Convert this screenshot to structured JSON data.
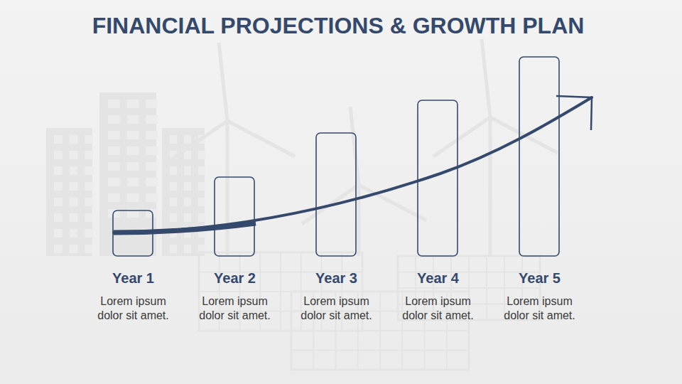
{
  "chart_data": {
    "type": "bar",
    "title": "FINANCIAL PROJECTIONS & GROWTH PLAN",
    "categories": [
      "Year 1",
      "Year 2",
      "Year 3",
      "Year 4",
      "Year 5"
    ],
    "values": [
      64,
      111,
      173,
      219,
      280
    ],
    "descriptions": [
      "Lorem ipsum dolor sit amet.",
      "Lorem ipsum dolor sit amet.",
      "Lorem ipsum dolor sit amet.",
      "Lorem ipsum dolor sit amet.",
      "Lorem ipsum dolor sit amet."
    ],
    "color": "#34496b",
    "ylim": [
      0,
      280
    ],
    "tick_labels": "x"
  }
}
